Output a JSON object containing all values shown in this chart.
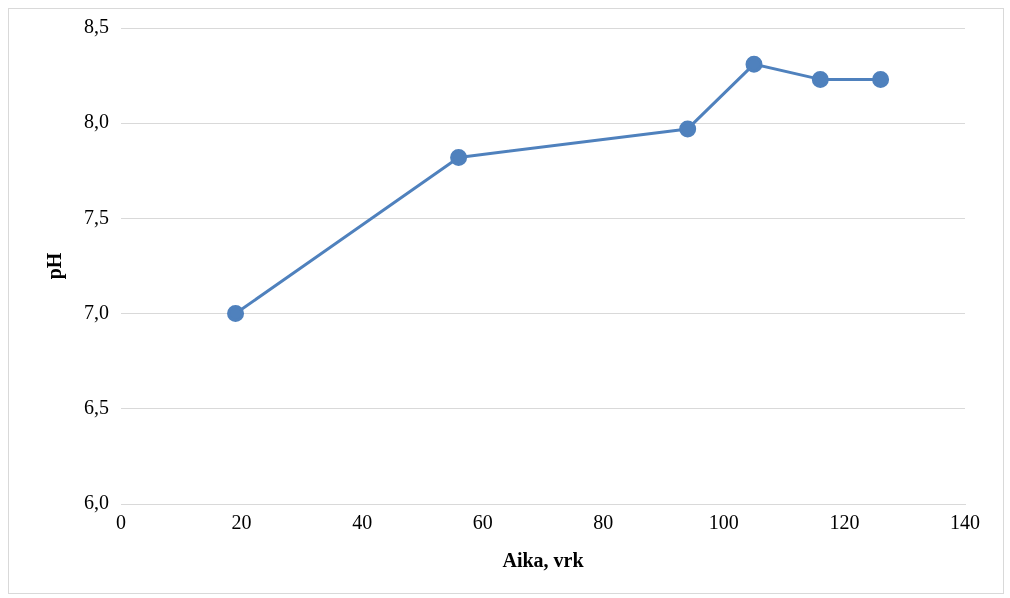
{
  "chart_data": {
    "type": "line",
    "xlabel": "Aika, vrk",
    "ylabel": "pH",
    "x": [
      19,
      56,
      94,
      105,
      116,
      126
    ],
    "series": [
      {
        "color": "#4f81bd",
        "values": [
          7.0,
          7.82,
          7.97,
          8.31,
          8.23,
          8.23
        ]
      }
    ],
    "xlim": [
      0,
      140
    ],
    "xticks": [
      0,
      20,
      40,
      60,
      80,
      100,
      120,
      140
    ],
    "ylim": [
      6.0,
      8.5
    ],
    "yticks": [
      {
        "value": 6.0,
        "label": "6,0"
      },
      {
        "value": 6.5,
        "label": "6,5"
      },
      {
        "value": 7.0,
        "label": "7,0"
      },
      {
        "value": 7.5,
        "label": "7,5"
      },
      {
        "value": 8.0,
        "label": "8,0"
      },
      {
        "value": 8.5,
        "label": "8,5"
      }
    ],
    "grid": "y",
    "marker": "circle",
    "line_style": "solid",
    "legend": false
  }
}
